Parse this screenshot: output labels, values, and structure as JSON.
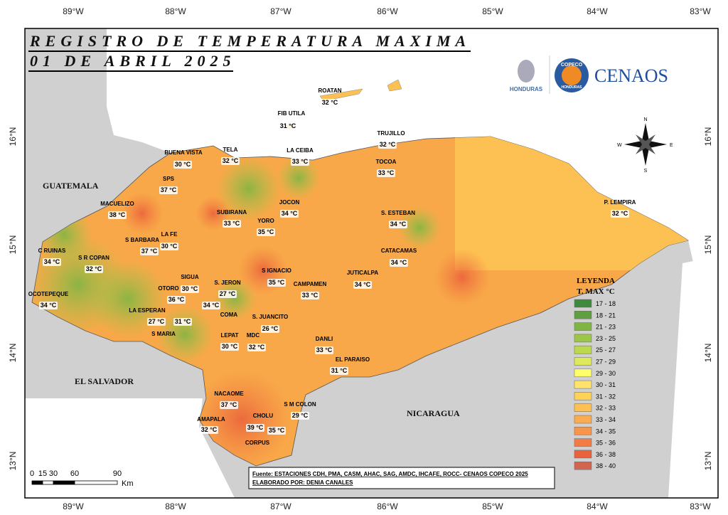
{
  "header": {
    "title": "REGISTRO DE TEMPERATURA MAXIMA",
    "date": "01 DE ABRIL 2025"
  },
  "lon_ticks": [
    "89°W",
    "88°W",
    "87°W",
    "86°W",
    "85°W",
    "84°W",
    "83°W"
  ],
  "lat_ticks": [
    "16°N",
    "15°N",
    "14°N",
    "13°N"
  ],
  "countries": [
    "GUATEMALA",
    "EL SALVADOR",
    "NICARAGUA"
  ],
  "logos": {
    "left": "HONDURAS",
    "ring_top": "COPECO",
    "ring_bottom": "HONDURAS",
    "right": "CENAOS"
  },
  "compass": {
    "n": "N",
    "s": "S",
    "e": "E",
    "w": "W"
  },
  "stations": [
    {
      "name": "ROATAN",
      "value": "32 °C"
    },
    {
      "name": "FIB UTILA",
      "value": "31 °C"
    },
    {
      "name": "TRUJILLO",
      "value": "32 °C"
    },
    {
      "name": "BUENA VISTA",
      "value": "30 °C"
    },
    {
      "name": "TELA",
      "value": "32 °C"
    },
    {
      "name": "LA CEIBA",
      "value": "33 °C"
    },
    {
      "name": "TOCOA",
      "value": "33 °C"
    },
    {
      "name": "SPS",
      "value": "37 °C"
    },
    {
      "name": "JOCON",
      "value": "34 °C"
    },
    {
      "name": "MACUELIZO",
      "value": "38 °C"
    },
    {
      "name": "P. LEMPIRA",
      "value": "32 °C"
    },
    {
      "name": "SUBIRANA",
      "value": "33 °C"
    },
    {
      "name": "S. ESTEBAN",
      "value": "34 °C"
    },
    {
      "name": "YORO",
      "value": "35 °C"
    },
    {
      "name": "LA FE",
      "value": "30 °C"
    },
    {
      "name": "S BARBARA",
      "value": "37 °C"
    },
    {
      "name": "C RUINAS",
      "value": "34 °C"
    },
    {
      "name": "CATACAMAS",
      "value": "34 °C"
    },
    {
      "name": "S R COPAN",
      "value": "32 °C"
    },
    {
      "name": "S IGNACIO",
      "value": "35 °C"
    },
    {
      "name": "SIGUA",
      "value": "30 °C"
    },
    {
      "name": "JUTICALPA",
      "value": "34 °C"
    },
    {
      "name": "S. JERON",
      "value": "27 °C"
    },
    {
      "name": "CAMPAMEN",
      "value": "33 °C"
    },
    {
      "name": "OTORO",
      "value": "36 °C"
    },
    {
      "name": "OCOTEPEQUE",
      "value": "34 °C"
    },
    {
      "name": "COMA",
      "value": "34 °C"
    },
    {
      "name": "LA ESPERAN",
      "value": "27 °C"
    },
    {
      "name": "S MARIA",
      "value": "31 °C"
    },
    {
      "name": "S. JUANCITO",
      "value": "26 °C"
    },
    {
      "name": "LEPAT",
      "value": "30 °C"
    },
    {
      "name": "MDC",
      "value": "32 °C"
    },
    {
      "name": "DANLI",
      "value": "33 °C"
    },
    {
      "name": "EL PARAISO",
      "value": "31 °C"
    },
    {
      "name": "NACAOME",
      "value": "37 °C"
    },
    {
      "name": "S M COLON",
      "value": "29 °C"
    },
    {
      "name": "AMAPALA",
      "value": "32 °C"
    },
    {
      "name": "CHOLU",
      "value": "39 °C"
    },
    {
      "name": "CORPUS",
      "value": "35 °C"
    }
  ],
  "legend": {
    "title": "LEYENDA",
    "subtitle": "T. MAX °C",
    "items": [
      {
        "label": "17 - 18",
        "color": "#3f8a3f"
      },
      {
        "label": "18 - 21",
        "color": "#5f9f41"
      },
      {
        "label": "21 - 23",
        "color": "#7fb543"
      },
      {
        "label": "23 - 25",
        "color": "#9cc64a"
      },
      {
        "label": "25 - 27",
        "color": "#bcd94d"
      },
      {
        "label": "27 - 29",
        "color": "#dfe95c"
      },
      {
        "label": "29 - 30",
        "color": "#ffff6a"
      },
      {
        "label": "30 - 31",
        "color": "#ffe36a"
      },
      {
        "label": "31 - 32",
        "color": "#fed256"
      },
      {
        "label": "32 - 33",
        "color": "#fdc052"
      },
      {
        "label": "33 - 34",
        "color": "#fbab52"
      },
      {
        "label": "34 - 35",
        "color": "#f7954a"
      },
      {
        "label": "35 - 36",
        "color": "#f27c43"
      },
      {
        "label": "36 - 38",
        "color": "#ea623b"
      },
      {
        "label": "38 - 40",
        "color": "#d2654f"
      }
    ]
  },
  "scale": {
    "labels": [
      "0",
      "15",
      "30",
      "60",
      "90"
    ],
    "unit": "Km"
  },
  "source": {
    "line1": "Fuente: ESTACIONES CDH, PMA, CASM, AHAC, SAG, AMDC, IHCAFE, ROCC- CENAOS COPECO 2025",
    "line2": "ELABORADO POR: DENIA CANALES"
  }
}
